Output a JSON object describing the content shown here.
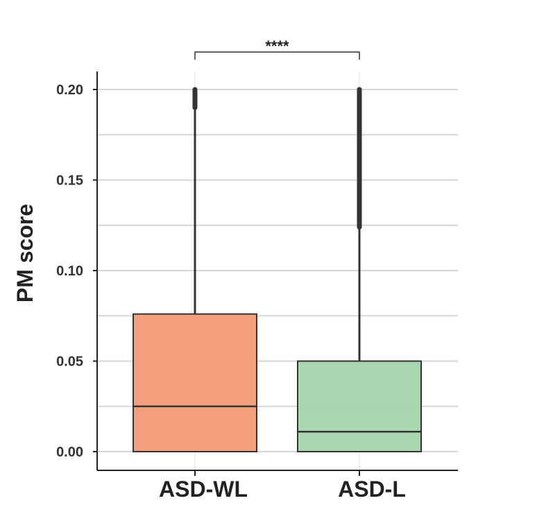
{
  "chart_data": {
    "type": "box",
    "title": "",
    "xlabel": "",
    "ylabel": "PM score",
    "ylim": [
      -0.01,
      0.21
    ],
    "yticks": [
      0.0,
      0.05,
      0.1,
      0.15,
      0.2
    ],
    "ytick_labels": [
      "0.00",
      "0.05",
      "0.10",
      "0.15",
      "0.20"
    ],
    "grid": true,
    "legend": "none",
    "categories": [
      "ASD-WL",
      "ASD-L"
    ],
    "boxes": [
      {
        "category": "ASD-WL",
        "whisker_low": 0.0,
        "q1": 0.0,
        "median": 0.025,
        "q3": 0.076,
        "whisker_high": 0.19,
        "outliers_range": [
          0.19,
          0.2
        ],
        "color": "#f29a74"
      },
      {
        "category": "ASD-L",
        "whisker_low": 0.0,
        "q1": 0.0,
        "median": 0.011,
        "q3": 0.05,
        "whisker_high": 0.124,
        "outliers_range": [
          0.124,
          0.2
        ],
        "color": "#a3d4aa"
      }
    ],
    "significance": {
      "label": "****",
      "between": [
        "ASD-WL",
        "ASD-L"
      ]
    }
  }
}
